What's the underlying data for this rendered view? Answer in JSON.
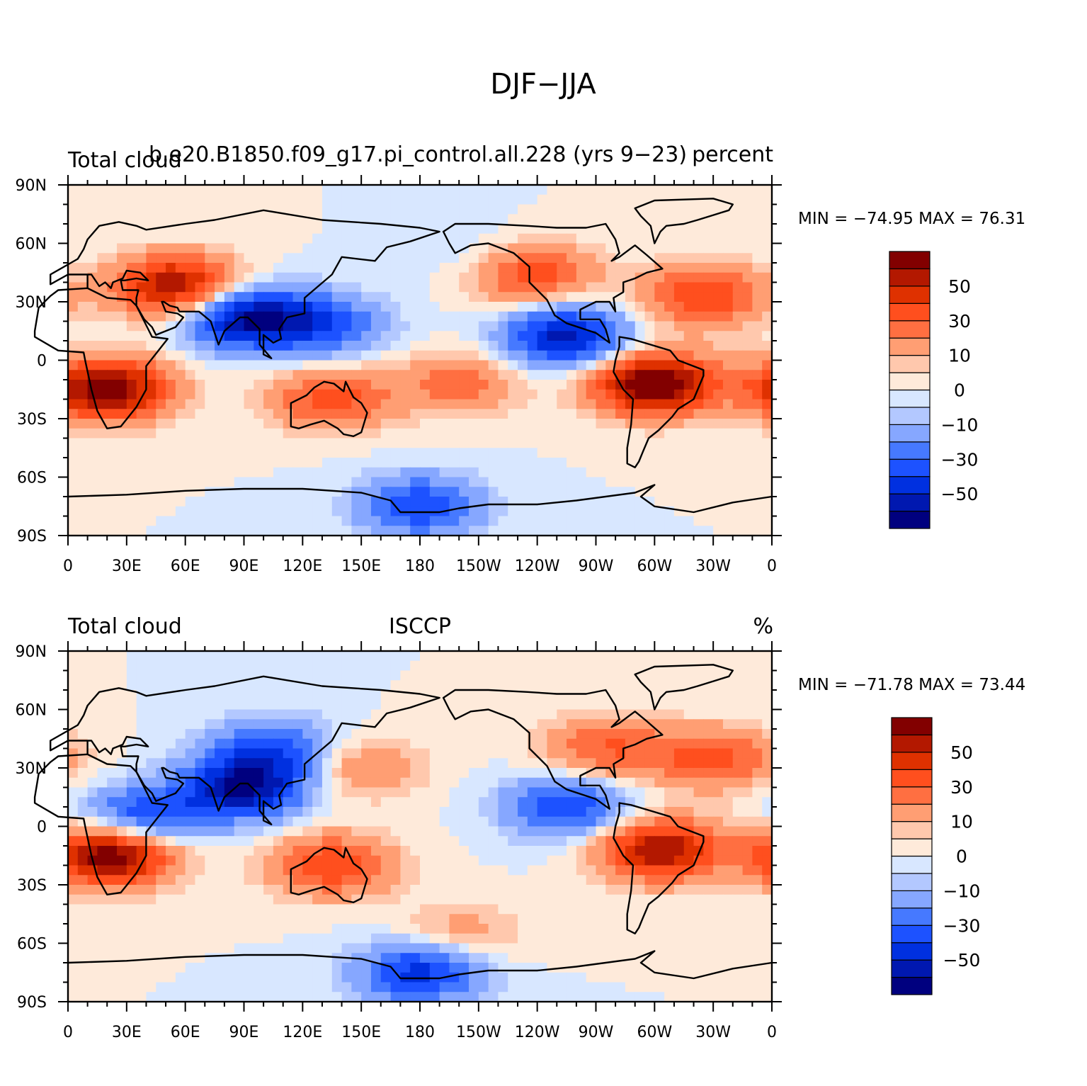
{
  "figure": {
    "title": "DJF−JJA"
  },
  "panels": [
    {
      "left_label": "Total cloud",
      "center_label": "b.e20.B1850.f09_g17.pi_control.all.228 (yrs 9−23)",
      "right_label": "percent",
      "min_max": "MIN = −74.95 MAX =  76.31",
      "field": {
        "type": "filled-contour-map",
        "variable": "Total cloud",
        "units": "percent",
        "min": -74.95,
        "max": 76.31,
        "lon_range": [
          0,
          360
        ],
        "lat_range": [
          -90,
          90
        ],
        "features": [
          {
            "lon": 20,
            "lat": -15,
            "value": 70
          },
          {
            "lon": 55,
            "lat": 38,
            "value": 60
          },
          {
            "lon": 300,
            "lat": -12,
            "value": 75
          },
          {
            "lon": 90,
            "lat": 22,
            "value": -60
          },
          {
            "lon": 255,
            "lat": 12,
            "value": -55
          },
          {
            "lon": 135,
            "lat": -20,
            "value": 35
          },
          {
            "lon": 130,
            "lat": 18,
            "value": -35
          },
          {
            "lon": 235,
            "lat": 45,
            "value": 45
          },
          {
            "lon": 325,
            "lat": 33,
            "value": 40
          },
          {
            "lon": 200,
            "lat": -12,
            "value": 25
          },
          {
            "lon": 180,
            "lat": -75,
            "value": -40
          },
          {
            "lon": 220,
            "lat": 50,
            "value": -15
          }
        ]
      }
    },
    {
      "left_label": "Total cloud",
      "center_label": "ISCCP",
      "right_label": "%",
      "min_max": "MIN = −71.78 MAX =  73.44",
      "field": {
        "type": "filled-contour-map",
        "variable": "Total cloud",
        "units": "%",
        "min": -71.78,
        "max": 73.44,
        "lon_range": [
          0,
          360
        ],
        "lat_range": [
          -90,
          90
        ],
        "features": [
          {
            "lon": 22,
            "lat": -15,
            "value": 70
          },
          {
            "lon": 303,
            "lat": -12,
            "value": 60
          },
          {
            "lon": 90,
            "lat": 20,
            "value": -60
          },
          {
            "lon": 105,
            "lat": 40,
            "value": -35
          },
          {
            "lon": 135,
            "lat": -20,
            "value": 40
          },
          {
            "lon": 150,
            "lat": 30,
            "value": 20
          },
          {
            "lon": 255,
            "lat": 10,
            "value": -40
          },
          {
            "lon": 275,
            "lat": 40,
            "value": 30
          },
          {
            "lon": 330,
            "lat": 35,
            "value": 35
          },
          {
            "lon": 40,
            "lat": 5,
            "value": -40
          },
          {
            "lon": 180,
            "lat": -75,
            "value": -45
          },
          {
            "lon": 200,
            "lat": -55,
            "value": 15
          }
        ]
      }
    }
  ],
  "axes": {
    "lat_ticks": [
      {
        "lat": 90,
        "label": "90N"
      },
      {
        "lat": 60,
        "label": "60N"
      },
      {
        "lat": 30,
        "label": "30N"
      },
      {
        "lat": 0,
        "label": "0"
      },
      {
        "lat": -30,
        "label": "30S"
      },
      {
        "lat": -60,
        "label": "60S"
      },
      {
        "lat": -90,
        "label": "90S"
      }
    ],
    "lon_ticks": [
      {
        "lon": 0,
        "label": "0"
      },
      {
        "lon": 30,
        "label": "30E"
      },
      {
        "lon": 60,
        "label": "60E"
      },
      {
        "lon": 90,
        "label": "90E"
      },
      {
        "lon": 120,
        "label": "120E"
      },
      {
        "lon": 150,
        "label": "150E"
      },
      {
        "lon": 180,
        "label": "180"
      },
      {
        "lon": 210,
        "label": "150W"
      },
      {
        "lon": 240,
        "label": "120W"
      },
      {
        "lon": 270,
        "label": "90W"
      },
      {
        "lon": 300,
        "label": "60W"
      },
      {
        "lon": 330,
        "label": "30W"
      },
      {
        "lon": 360,
        "label": "0"
      }
    ]
  },
  "colorbar": {
    "colors": [
      "#00007f",
      "#0018b0",
      "#0030e0",
      "#1d52ff",
      "#4679ff",
      "#86a7ff",
      "#b3c8ff",
      "#d8e7ff",
      "#feeada",
      "#ffc8ad",
      "#ff9e73",
      "#ff6f41",
      "#ff4f1e",
      "#df3100",
      "#b31800",
      "#820000"
    ],
    "levels": [
      -70,
      -60,
      -50,
      -40,
      -30,
      -20,
      -10,
      -5,
      0,
      5,
      10,
      20,
      30,
      40,
      50,
      60,
      70
    ],
    "labels": [
      {
        "value": 50,
        "text": "50"
      },
      {
        "value": 30,
        "text": "30"
      },
      {
        "value": 10,
        "text": "10"
      },
      {
        "value": 0,
        "text": "0"
      },
      {
        "value": -10,
        "text": "−10"
      },
      {
        "value": -30,
        "text": "−30"
      },
      {
        "value": -50,
        "text": "−50"
      }
    ]
  }
}
